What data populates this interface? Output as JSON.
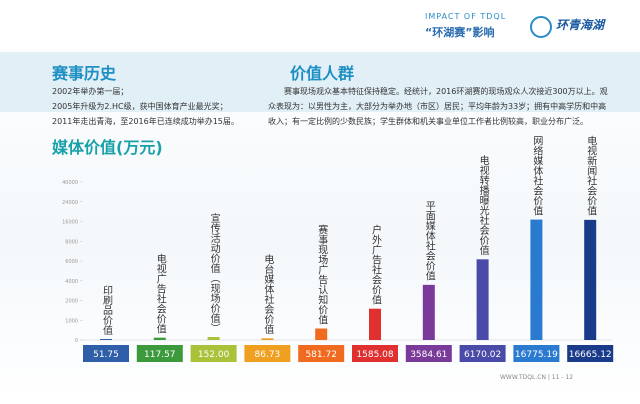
{
  "header": {
    "subtitle": "IMPACT OF TDQL",
    "title": "“环湖赛”影响",
    "logo": "环青海湖"
  },
  "history": {
    "title": "赛事历史",
    "lines": [
      "2002年举办第一届；",
      "2005年升级为2.HC级，获中国体育产业最光奖；",
      "2011年走出青海，至2016年已连续成功举办15届。"
    ]
  },
  "crowd": {
    "title": "价值人群",
    "text": "赛事现场观众基本特征保持稳定。经统计，2016环湖赛的现场观众人次接近300万以上。观众表现为：以男性为主，大部分为举办地（市区）居民；平均年龄为33岁；拥有中高学历和中高收入；有一定比例的少数民族；学生群体和机关事业单位工作者比例较高，职业分布广泛。"
  },
  "chart_data": {
    "type": "bar",
    "title": "媒体价值(万元)",
    "categories": [
      "印刷品价值",
      "电视广告社会价值",
      "宣传活动价值（现场价值）",
      "电台媒体社会价值",
      "赛事现场广告认知价值",
      "户外广告社会价值",
      "平面媒体社会价值",
      "电视转播曝光社会价值",
      "网络媒体社会价值",
      "电视新闻社会价值"
    ],
    "values": [
      51.75,
      117.57,
      152,
      86.73,
      581.72,
      1585.08,
      3584.61,
      6170.02,
      16775.19,
      16665.12
    ],
    "value_labels": [
      "51.75",
      "117.57",
      "152.00",
      "86.73",
      "581.72",
      "1585.08",
      "3584.61",
      "6170.02",
      "16775.19",
      "16665.12"
    ],
    "colors": [
      "#2f5fa8",
      "#3c9a3c",
      "#a8c23a",
      "#f0a020",
      "#f06a20",
      "#e03030",
      "#7a3a9a",
      "#4a4aa8",
      "#2a7ad0",
      "#1a3a8a"
    ],
    "ylim": [
      0,
      40000
    ],
    "yticks": [
      0,
      1000,
      2000,
      4000,
      6000,
      8000,
      16000,
      24000,
      40000
    ],
    "grid": false
  },
  "footer": "WWW.TDQL.CN | 11 - 12"
}
